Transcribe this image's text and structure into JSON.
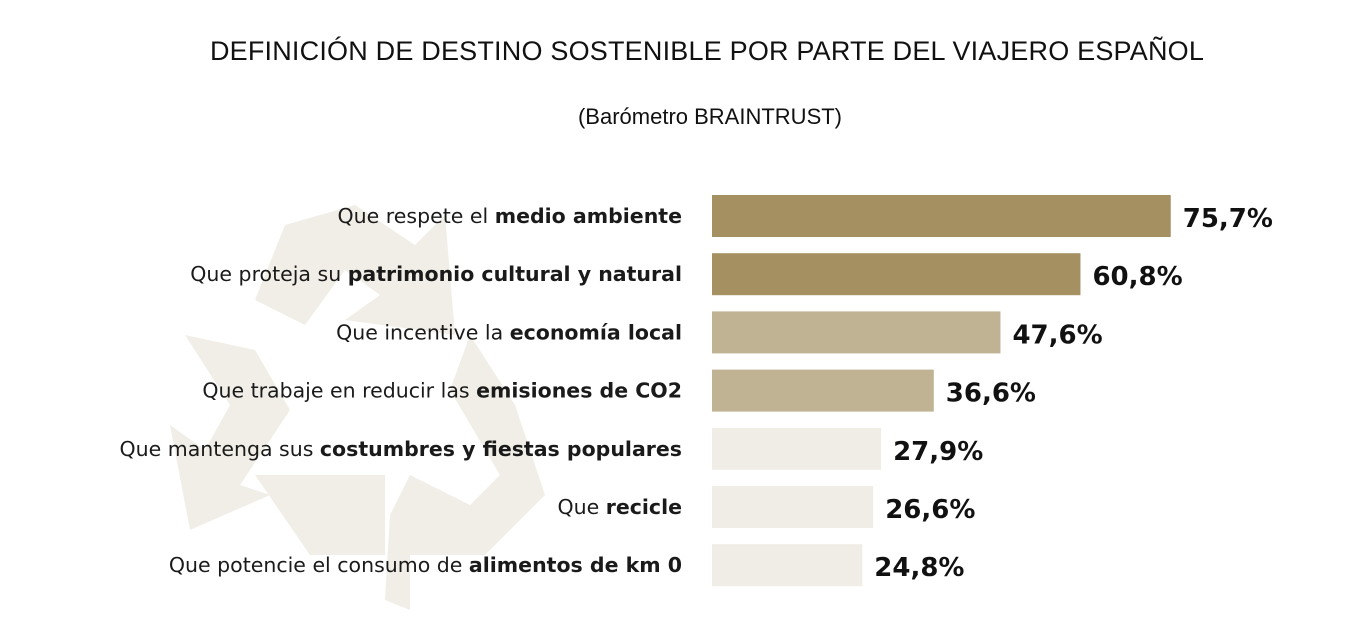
{
  "chart_data": {
    "type": "bar",
    "orientation": "horizontal",
    "title": "DEFINICIÓN DE DESTINO SOSTENIBLE POR PARTE DEL VIAJERO ESPAÑOL",
    "subtitle": "(Barómetro BRAINTRUST)",
    "categories": [
      {
        "prefix": "Que respete el ",
        "bold": "medio ambiente"
      },
      {
        "prefix": "Que proteja su ",
        "bold": "patrimonio cultural y natural"
      },
      {
        "prefix": "Que incentive la ",
        "bold": "economía local"
      },
      {
        "prefix": "Que trabaje en reducir las ",
        "bold": "emisiones de CO2"
      },
      {
        "prefix": "Que mantenga sus ",
        "bold": "costumbres y fiestas populares"
      },
      {
        "prefix": "Que ",
        "bold": "recicle"
      },
      {
        "prefix": "Que potencie el consumo de ",
        "bold": "alimentos de km 0"
      }
    ],
    "values": [
      75.7,
      60.8,
      47.6,
      36.6,
      27.9,
      26.6,
      24.8
    ],
    "value_labels": [
      "75,7%",
      "60,8%",
      "47,6%",
      "36,6%",
      "27,9%",
      "26,6%",
      "24,8%"
    ],
    "bar_colors": [
      "#a59062",
      "#a59062",
      "#c0b393",
      "#c0b393",
      "#f0ede6",
      "#f0ede6",
      "#f0ede6"
    ],
    "xlim": [
      0,
      100
    ],
    "grid": false,
    "background_icon": "recycle-icon",
    "icon_color": "#f1eee7"
  }
}
